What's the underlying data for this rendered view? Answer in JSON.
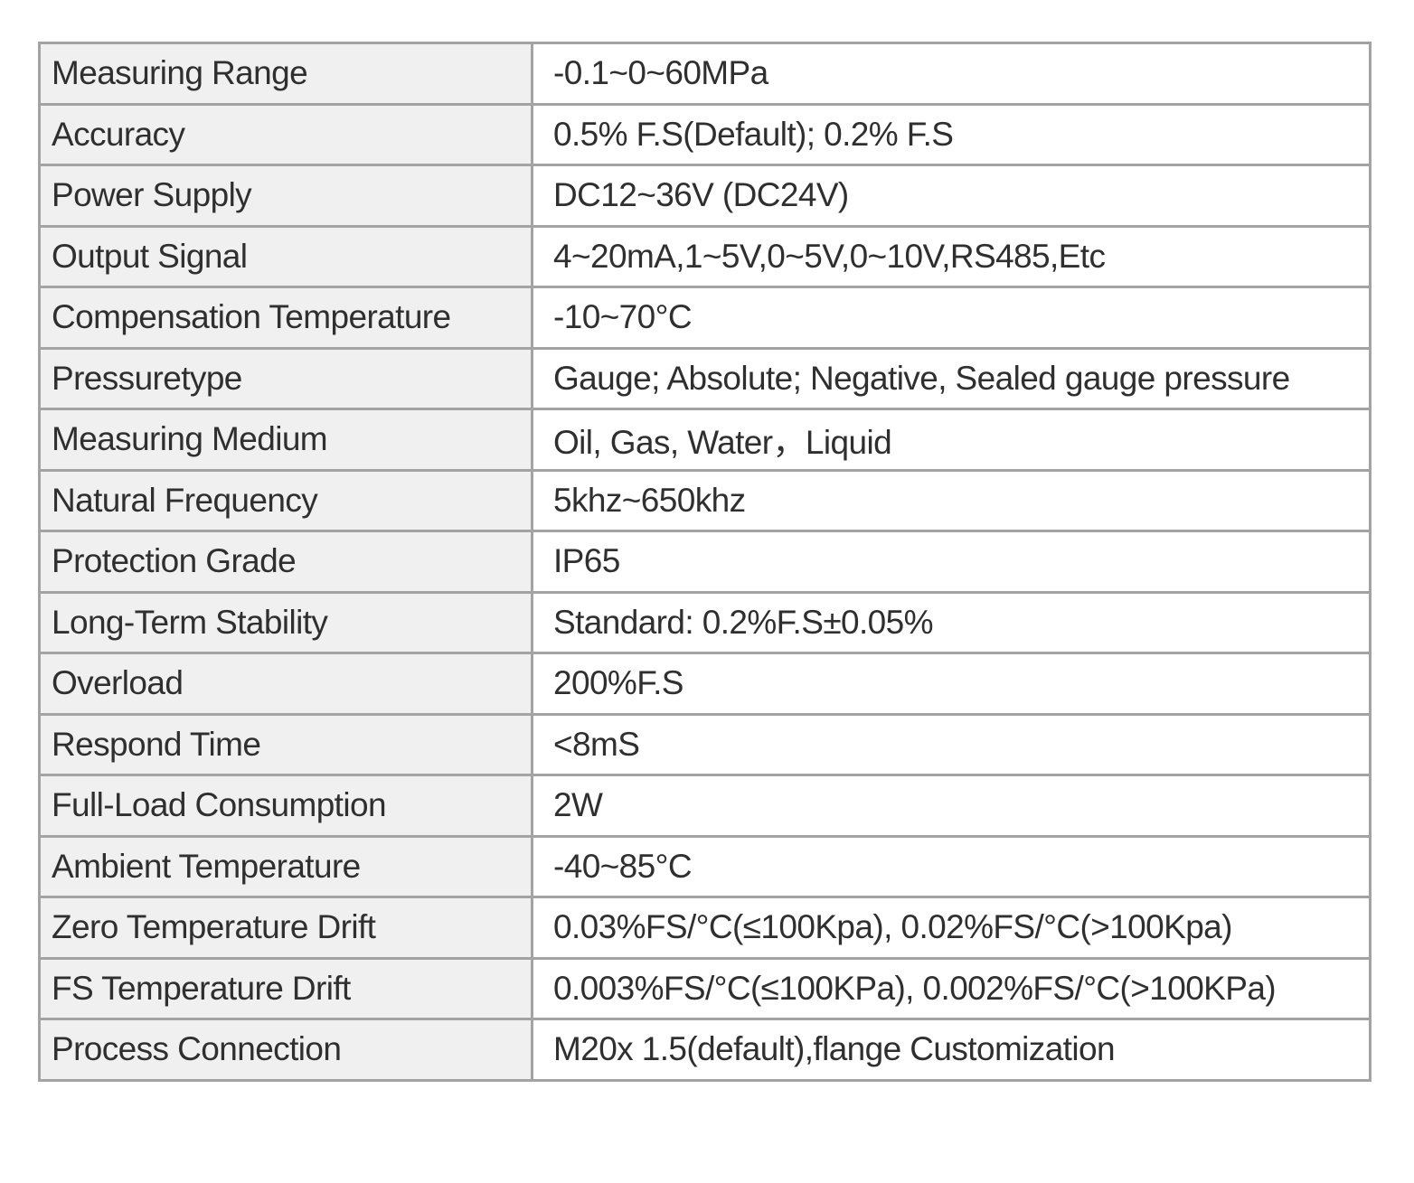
{
  "table": {
    "rows": [
      [
        "Measuring Range",
        "-0.1~0~60MPa"
      ],
      [
        "Accuracy",
        "0.5% F.S(Default); 0.2% F.S"
      ],
      [
        "Power Supply",
        "DC12~36V (DC24V)"
      ],
      [
        "Output Signal",
        "4~20mA,1~5V,0~5V,0~10V,RS485,Etc"
      ],
      [
        "Compensation Temperature",
        "-10~70°C"
      ],
      [
        "Pressuretype",
        "Gauge; Absolute; Negative, Sealed gauge pressure"
      ],
      [
        "Measuring Medium",
        "Oil, Gas, Water，Liquid"
      ],
      [
        "Natural Frequency",
        "5khz~650khz"
      ],
      [
        "Protection Grade",
        "IP65"
      ],
      [
        "Long-Term Stability",
        "Standard: 0.2%F.S±0.05%"
      ],
      [
        "Overload",
        "200%F.S"
      ],
      [
        "Respond Time",
        "<8mS"
      ],
      [
        "Full-Load Consumption",
        "2W"
      ],
      [
        "Ambient Temperature",
        "-40~85°C"
      ],
      [
        "Zero Temperature Drift",
        "0.03%FS/°C(≤100Kpa),  0.02%FS/°C(>100Kpa)"
      ],
      [
        "FS Temperature Drift",
        "0.003%FS/°C(≤100KPa),  0.002%FS/°C(>100KPa)"
      ],
      [
        "Process Connection",
        "M20x 1.5(default),flange Customization"
      ]
    ]
  }
}
